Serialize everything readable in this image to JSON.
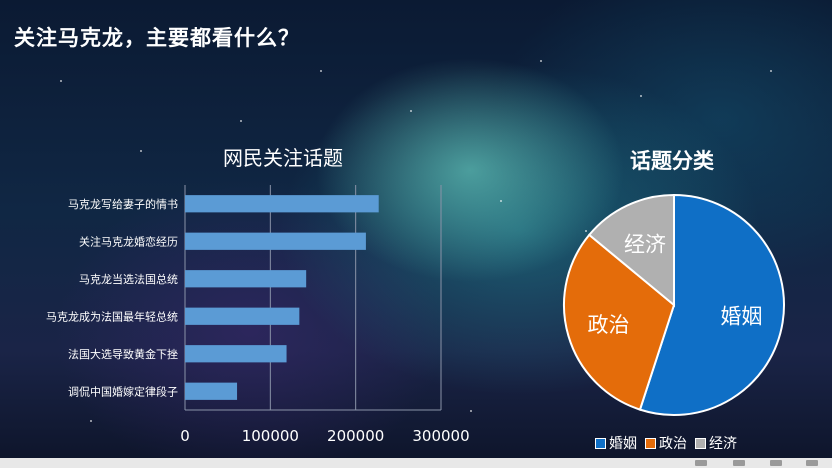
{
  "page": {
    "title": "关注马克龙，主要都看什么？"
  },
  "chart_data": [
    {
      "type": "bar",
      "orientation": "horizontal",
      "title": "网民关注话题",
      "categories": [
        "马克龙写给妻子的情书",
        "关注马克龙婚恋经历",
        "马克龙当选法国总统",
        "马克龙成为法国最年轻总统",
        "法国大选导致黄金下挫",
        "调侃中国婚嫁定律段子"
      ],
      "values": [
        227000,
        212000,
        142000,
        134000,
        119000,
        61000
      ],
      "xlim": [
        0,
        300000
      ],
      "xticks": [
        "0",
        "100000",
        "200000",
        "300000"
      ],
      "xlabel": "",
      "ylabel": "",
      "grid": true,
      "bar_color": "#5b9bd5"
    },
    {
      "type": "pie",
      "title": "话题分类",
      "labels": [
        "婚姻",
        "政治",
        "经济"
      ],
      "values": [
        55,
        31,
        14
      ],
      "colors": [
        "#0f6fc6",
        "#e46c0a",
        "#b0b0b0"
      ],
      "legend": "bottom"
    }
  ]
}
